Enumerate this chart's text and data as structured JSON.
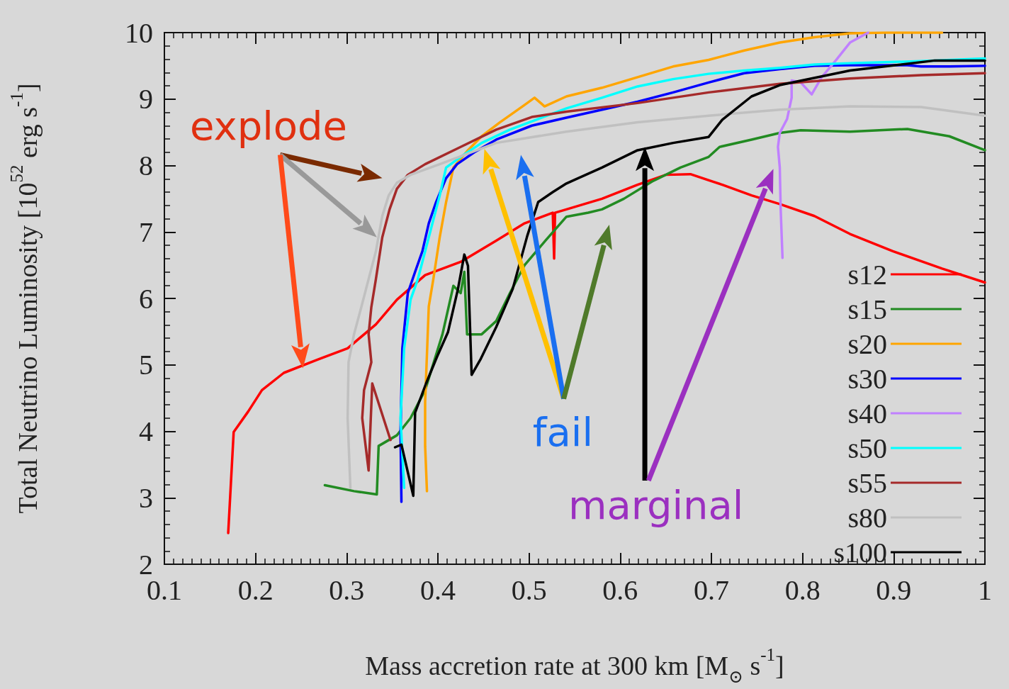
{
  "chart_data": {
    "type": "line",
    "xlabel": "Mass accretion rate at 300 km [M$_{⊙}$ s$^{-1}$]",
    "ylabel": "Total Neutrino Luminosity [10$^{52}$ erg s$^{-1}$]",
    "xlim": [
      0.1,
      1
    ],
    "xticks": [
      0.1,
      0.2,
      0.3,
      0.4,
      0.5,
      0.6,
      0.7,
      0.8,
      0.9,
      1
    ],
    "ylim": [
      2,
      10
    ],
    "yticks": [
      2,
      3,
      4,
      5,
      6,
      7,
      8,
      9,
      10
    ],
    "grid": false,
    "legend": "bottom right",
    "marker": "none",
    "line_style": "solid",
    "annotations": [
      "explode",
      "fail",
      "marginal"
    ],
    "series": [
      {
        "name": "s12",
        "color": "#ff0000",
        "x": [
          0.17,
          0.176,
          0.192,
          0.207,
          0.231,
          0.27,
          0.301,
          0.332,
          0.355,
          0.386,
          0.425,
          0.464,
          0.495,
          0.526,
          0.5275,
          0.5285,
          0.541,
          0.58,
          0.619,
          0.65,
          0.677,
          0.712,
          0.744,
          0.775,
          0.813,
          0.852,
          0.899,
          0.953,
          1.0
        ],
        "values": [
          2.47,
          3.99,
          4.3,
          4.62,
          4.88,
          5.09,
          5.25,
          5.61,
          5.98,
          6.35,
          6.55,
          6.87,
          7.13,
          7.29,
          6.6,
          7.29,
          7.34,
          7.5,
          7.71,
          7.86,
          7.87,
          7.71,
          7.55,
          7.42,
          7.24,
          6.97,
          6.71,
          6.45,
          6.24
        ]
      },
      {
        "name": "s15",
        "color": "#228b22",
        "x": [
          0.276,
          0.308,
          0.333,
          0.335,
          0.355,
          0.37,
          0.386,
          0.405,
          0.417,
          0.425,
          0.429,
          0.432,
          0.448,
          0.464,
          0.479,
          0.495,
          0.518,
          0.541,
          0.565,
          0.58,
          0.604,
          0.635,
          0.666,
          0.697,
          0.709,
          0.744,
          0.775,
          0.798,
          0.852,
          0.915,
          0.961,
          1.0
        ],
        "values": [
          3.19,
          3.1,
          3.05,
          3.78,
          3.94,
          4.2,
          4.62,
          5.46,
          6.19,
          6.08,
          6.4,
          5.46,
          5.46,
          5.66,
          6.08,
          6.5,
          6.87,
          7.23,
          7.29,
          7.34,
          7.5,
          7.76,
          7.97,
          8.13,
          8.28,
          8.39,
          8.49,
          8.53,
          8.51,
          8.55,
          8.44,
          8.23
        ]
      },
      {
        "name": "s20",
        "color": "#ffa500",
        "x": [
          0.388,
          0.386,
          0.386,
          0.39,
          0.395,
          0.402,
          0.409,
          0.417,
          0.433,
          0.448,
          0.468,
          0.495,
          0.506,
          0.517,
          0.541,
          0.58,
          0.619,
          0.658,
          0.697,
          0.736,
          0.775,
          0.813,
          0.852,
          0.891,
          0.953
        ],
        "values": [
          3.1,
          3.78,
          4.44,
          5.88,
          6.29,
          6.92,
          7.45,
          7.97,
          8.23,
          8.44,
          8.65,
          8.91,
          9.02,
          8.89,
          9.04,
          9.17,
          9.33,
          9.49,
          9.59,
          9.73,
          9.85,
          9.93,
          9.99,
          10.0,
          10.0
        ]
      },
      {
        "name": "s30",
        "color": "#0000ff",
        "x": [
          0.36,
          0.359,
          0.361,
          0.367,
          0.375,
          0.383,
          0.39,
          0.398,
          0.409,
          0.421,
          0.44,
          0.464,
          0.503,
          0.541,
          0.58,
          0.619,
          0.658,
          0.697,
          0.736,
          0.775,
          0.813,
          0.852,
          0.915,
          0.93,
          0.961,
          1.0
        ],
        "values": [
          2.94,
          3.99,
          5.25,
          6.08,
          6.4,
          6.71,
          7.13,
          7.45,
          7.81,
          8.02,
          8.2,
          8.39,
          8.6,
          8.72,
          8.84,
          8.96,
          9.1,
          9.25,
          9.39,
          9.45,
          9.5,
          9.51,
          9.51,
          9.49,
          9.49,
          9.5
        ]
      },
      {
        "name": "s40",
        "color": "#c080ff",
        "x": [
          0.778,
          0.776,
          0.775,
          0.773,
          0.775,
          0.783,
          0.788,
          0.788,
          0.798,
          0.81,
          0.821,
          0.837,
          0.852,
          0.872
        ],
        "values": [
          6.61,
          7.34,
          7.97,
          8.28,
          8.49,
          8.7,
          9.02,
          9.28,
          9.25,
          9.07,
          9.33,
          9.59,
          9.85,
          10.0
        ]
      },
      {
        "name": "s50",
        "color": "#00ffff",
        "x": [
          0.363,
          0.359,
          0.363,
          0.37,
          0.378,
          0.386,
          0.394,
          0.402,
          0.409,
          0.425,
          0.448,
          0.479,
          0.51,
          0.541,
          0.58,
          0.619,
          0.658,
          0.697,
          0.736,
          0.775,
          0.813,
          0.852,
          0.93,
          1.0
        ],
        "values": [
          3.15,
          4.2,
          5.25,
          5.98,
          6.29,
          6.71,
          7.13,
          7.55,
          7.97,
          8.13,
          8.34,
          8.54,
          8.7,
          8.86,
          9.02,
          9.19,
          9.3,
          9.38,
          9.43,
          9.47,
          9.52,
          9.54,
          9.57,
          9.61
        ]
      },
      {
        "name": "s55",
        "color": "#a52a2a",
        "x": [
          0.348,
          0.328,
          0.324,
          0.317,
          0.319,
          0.327,
          0.324,
          0.327,
          0.332,
          0.339,
          0.347,
          0.355,
          0.367,
          0.386,
          0.425,
          0.464,
          0.503,
          0.541,
          0.619,
          0.697,
          0.775,
          0.852,
          0.93,
          1.0
        ],
        "values": [
          3.87,
          4.72,
          3.41,
          4.2,
          4.62,
          5.04,
          5.46,
          5.87,
          6.29,
          6.92,
          7.34,
          7.65,
          7.86,
          8.02,
          8.28,
          8.54,
          8.73,
          8.81,
          8.94,
          9.1,
          9.23,
          9.31,
          9.36,
          9.39
        ]
      },
      {
        "name": "s80",
        "color": "#c0c0c0",
        "x": [
          0.304,
          0.301,
          0.302,
          0.308,
          0.316,
          0.324,
          0.332,
          0.339,
          0.346,
          0.355,
          0.37,
          0.402,
          0.464,
          0.541,
          0.619,
          0.697,
          0.775,
          0.852,
          0.93,
          1.0
        ],
        "values": [
          3.15,
          4.2,
          5.04,
          5.46,
          5.87,
          6.29,
          6.71,
          7.24,
          7.55,
          7.74,
          7.86,
          8.02,
          8.34,
          8.51,
          8.65,
          8.75,
          8.84,
          8.89,
          8.88,
          8.75
        ]
      },
      {
        "name": "s100",
        "color": "#000000",
        "x": [
          0.353,
          0.36,
          0.373,
          0.375,
          0.387,
          0.399,
          0.411,
          0.422,
          0.429,
          0.433,
          0.437,
          0.447,
          0.464,
          0.482,
          0.498,
          0.51,
          0.526,
          0.541,
          0.58,
          0.619,
          0.658,
          0.697,
          0.712,
          0.744,
          0.775,
          0.852,
          0.945,
          1.0
        ],
        "values": [
          3.76,
          3.8,
          3.03,
          4.28,
          4.72,
          5.12,
          5.49,
          6.14,
          6.66,
          6.49,
          4.85,
          5.09,
          5.57,
          6.14,
          6.94,
          7.45,
          7.6,
          7.73,
          7.97,
          8.23,
          8.34,
          8.43,
          8.69,
          9.04,
          9.21,
          9.43,
          9.58,
          9.58
        ]
      }
    ]
  }
}
